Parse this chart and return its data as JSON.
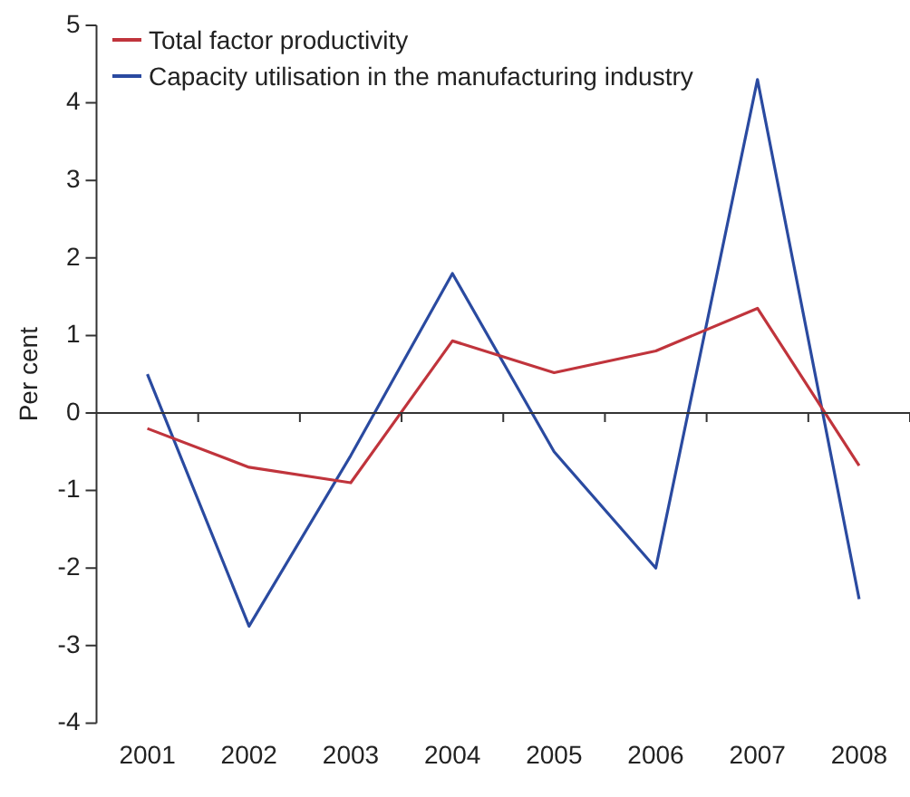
{
  "chart_data": {
    "type": "line",
    "ylabel": "Per cent",
    "categories": [
      "2001",
      "2002",
      "2003",
      "2004",
      "2005",
      "2006",
      "2007",
      "2008"
    ],
    "series": [
      {
        "name": "Total factor productivity",
        "color": "#c0343c",
        "values": [
          -0.2,
          -0.7,
          -0.9,
          0.93,
          0.52,
          0.8,
          1.35,
          -0.68
        ]
      },
      {
        "name": "Capacity utilisation in the manufacturing industry",
        "color": "#2a4aa0",
        "values": [
          0.5,
          -2.75,
          -0.55,
          1.8,
          -0.5,
          -2.0,
          4.3,
          -2.4
        ]
      }
    ],
    "ylim": [
      -4,
      5
    ],
    "yticks": [
      -4,
      -3,
      -2,
      -1,
      0,
      1,
      2,
      3,
      4,
      5
    ],
    "legend": "top left",
    "marker": "none",
    "line_style": "solid"
  }
}
